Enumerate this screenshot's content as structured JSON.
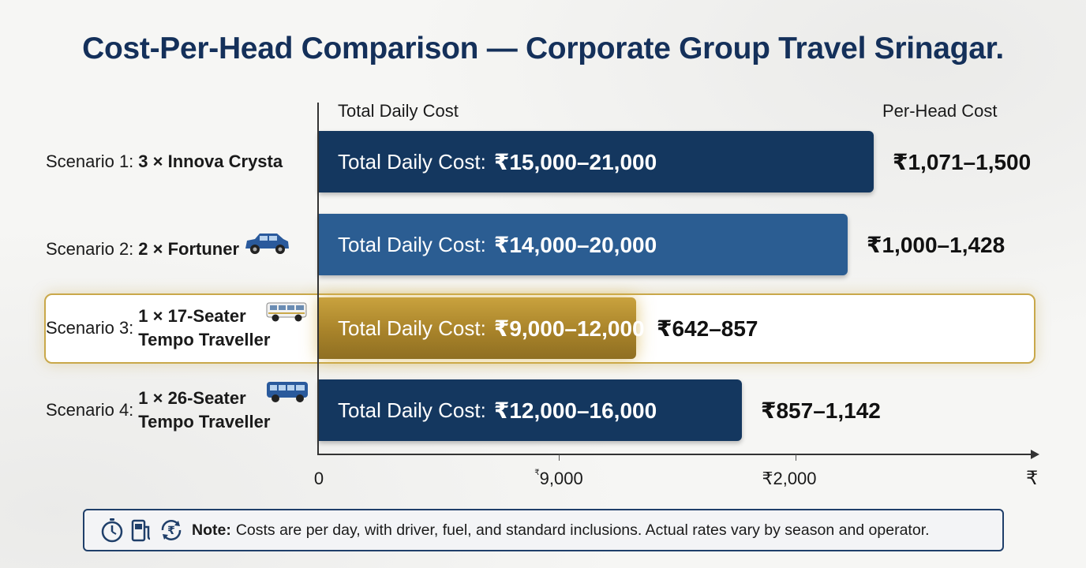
{
  "title": "Cost-Per-Head Comparison — Corporate Group Travel Srinagar.",
  "headers": {
    "left": "Total Daily Cost",
    "right": "Per-Head Cost"
  },
  "axis": {
    "ticks": [
      "0",
      "9,000",
      "₹2,000"
    ],
    "tick_small_prefix": "₹",
    "end_symbol": "₹"
  },
  "chart_data": {
    "type": "bar",
    "orientation": "horizontal",
    "title": "Cost-Per-Head Comparison — Corporate Group Travel Srinagar.",
    "categories": [
      "Scenario 1: 3 × Innova Crysta",
      "Scenario 2: 2 × Fortuner",
      "Scenario 3: 1 × 17-Seater Tempo Traveller",
      "Scenario 4: 1 × 26-Seater Tempo Traveller"
    ],
    "series": [
      {
        "name": "Total Daily Cost",
        "ranges": [
          [
            15000,
            21000
          ],
          [
            14000,
            20000
          ],
          [
            9000,
            12000
          ],
          [
            12000,
            16000
          ]
        ]
      },
      {
        "name": "Per-Head Cost",
        "ranges": [
          [
            1071,
            1500
          ],
          [
            1000,
            1428
          ],
          [
            642,
            857
          ],
          [
            857,
            1142
          ]
        ]
      }
    ],
    "highlighted_category": "Scenario 3: 1 × 17-Seater Tempo Traveller",
    "colors": {
      "bar_dark": "#14375f",
      "bar_mid": "#2b5d92",
      "bar_gold": "#b08a2a",
      "highlight_border": "#c9a84a"
    }
  },
  "rows": [
    {
      "prefix": "Scenario 1:",
      "vehicle": [
        "3 × Innova Crysta"
      ],
      "icon": "",
      "bar_label": "Total Daily Cost:",
      "bar_value": "₹15,000–21,000",
      "per_head": "₹1,071–1,500",
      "color": "#14375f"
    },
    {
      "prefix": "Scenario 2:",
      "vehicle": [
        "2 × Fortuner"
      ],
      "icon": "suv-icon",
      "bar_label": "Total Daily Cost:",
      "bar_value": "₹14,000–20,000",
      "per_head": "₹1,000–1,428",
      "color": "#2b5d92"
    },
    {
      "prefix": "Scenario 3:",
      "vehicle": [
        "1 × 17-Seater",
        "Tempo Traveller"
      ],
      "icon": "minibus-white-icon",
      "bar_label": "Total Daily Cost:",
      "bar_value": "₹9,000–12,000",
      "per_head": "₹642–857",
      "color": "#b08a2a"
    },
    {
      "prefix": "Scenario 4:",
      "vehicle": [
        "1 × 26-Seater",
        "Tempo Traveller"
      ],
      "icon": "minibus-blue-icon",
      "bar_label": "Total Daily Cost:",
      "bar_value": "₹12,000–16,000",
      "per_head": "₹857–1,142",
      "color": "#14375f"
    }
  ],
  "note": {
    "bold": "Note:",
    "text": "Costs are per day, with driver, fuel, and standard inclusions. Actual rates vary by season and operator.",
    "icons": [
      "stopwatch-icon",
      "fuel-pump-icon",
      "rupee-refresh-icon"
    ]
  }
}
